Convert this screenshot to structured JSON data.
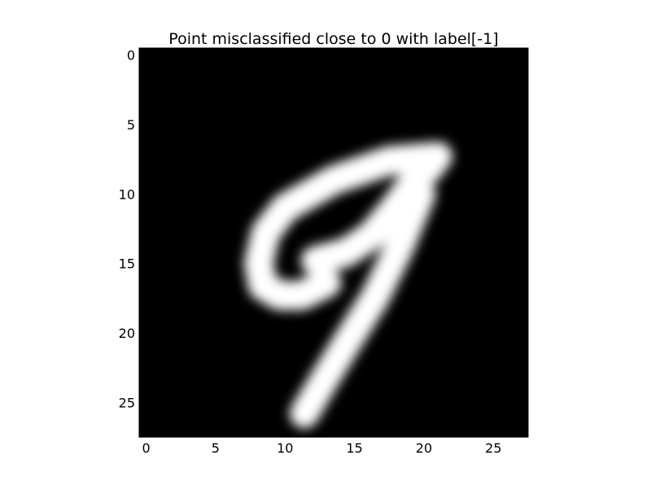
{
  "chart_data": {
    "type": "heatmap",
    "title": "Point misclassified close to 0 with label[-1]",
    "xlabel": "",
    "ylabel": "",
    "colormap": "gray",
    "background_color": "#000000",
    "foreground_color": "#ffffff",
    "image_size": [
      28,
      28
    ],
    "xlim": [
      -0.5,
      27.5
    ],
    "ylim": [
      27.5,
      -0.5
    ],
    "x_ticks": [
      0,
      5,
      10,
      15,
      20,
      25
    ],
    "y_ticks": [
      0,
      5,
      10,
      15,
      20,
      25
    ],
    "x_tick_labels": [
      "0",
      "5",
      "10",
      "15",
      "20",
      "25"
    ],
    "y_tick_labels": [
      "0",
      "5",
      "10",
      "15",
      "20",
      "25"
    ],
    "grid": false,
    "digit_strokes": [
      {
        "name": "top-arm",
        "points": [
          [
            21.0,
            7.3
          ],
          [
            17.5,
            7.6
          ],
          [
            13.5,
            9.0
          ],
          [
            10.0,
            11.0
          ],
          [
            8.6,
            12.8
          ],
          [
            8.1,
            15.0
          ],
          [
            8.4,
            16.6
          ],
          [
            9.6,
            17.3
          ],
          [
            11.2,
            17.3
          ],
          [
            13.0,
            16.4
          ]
        ]
      },
      {
        "name": "inner-bar",
        "points": [
          [
            12.2,
            14.8
          ],
          [
            14.4,
            14.2
          ],
          [
            16.2,
            13.0
          ],
          [
            17.8,
            11.1
          ],
          [
            19.2,
            9.2
          ],
          [
            20.5,
            8.0
          ]
        ]
      },
      {
        "name": "descender",
        "points": [
          [
            19.8,
            10.0
          ],
          [
            18.3,
            13.7
          ],
          [
            16.5,
            17.4
          ],
          [
            14.5,
            20.6
          ],
          [
            12.8,
            23.4
          ],
          [
            11.4,
            25.8
          ]
        ]
      }
    ]
  }
}
